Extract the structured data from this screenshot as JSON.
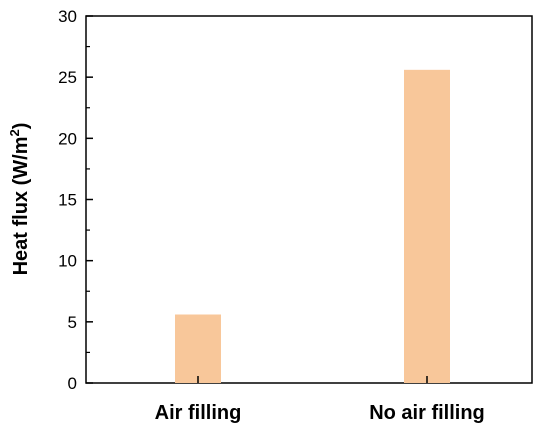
{
  "chart_data": {
    "type": "bar",
    "categories": [
      "Air filling",
      "No air filling"
    ],
    "values": [
      5.6,
      25.6
    ],
    "title": "",
    "xlabel": "",
    "ylabel_main": "Heat flux (W/m",
    "ylabel_sup": "2",
    "ylabel_end": ")",
    "ylim": [
      0,
      30
    ],
    "yticks": [
      "0",
      "5",
      "10",
      "15",
      "20",
      "25",
      "30"
    ],
    "grid": false,
    "bar_color": "#F8C79A"
  }
}
